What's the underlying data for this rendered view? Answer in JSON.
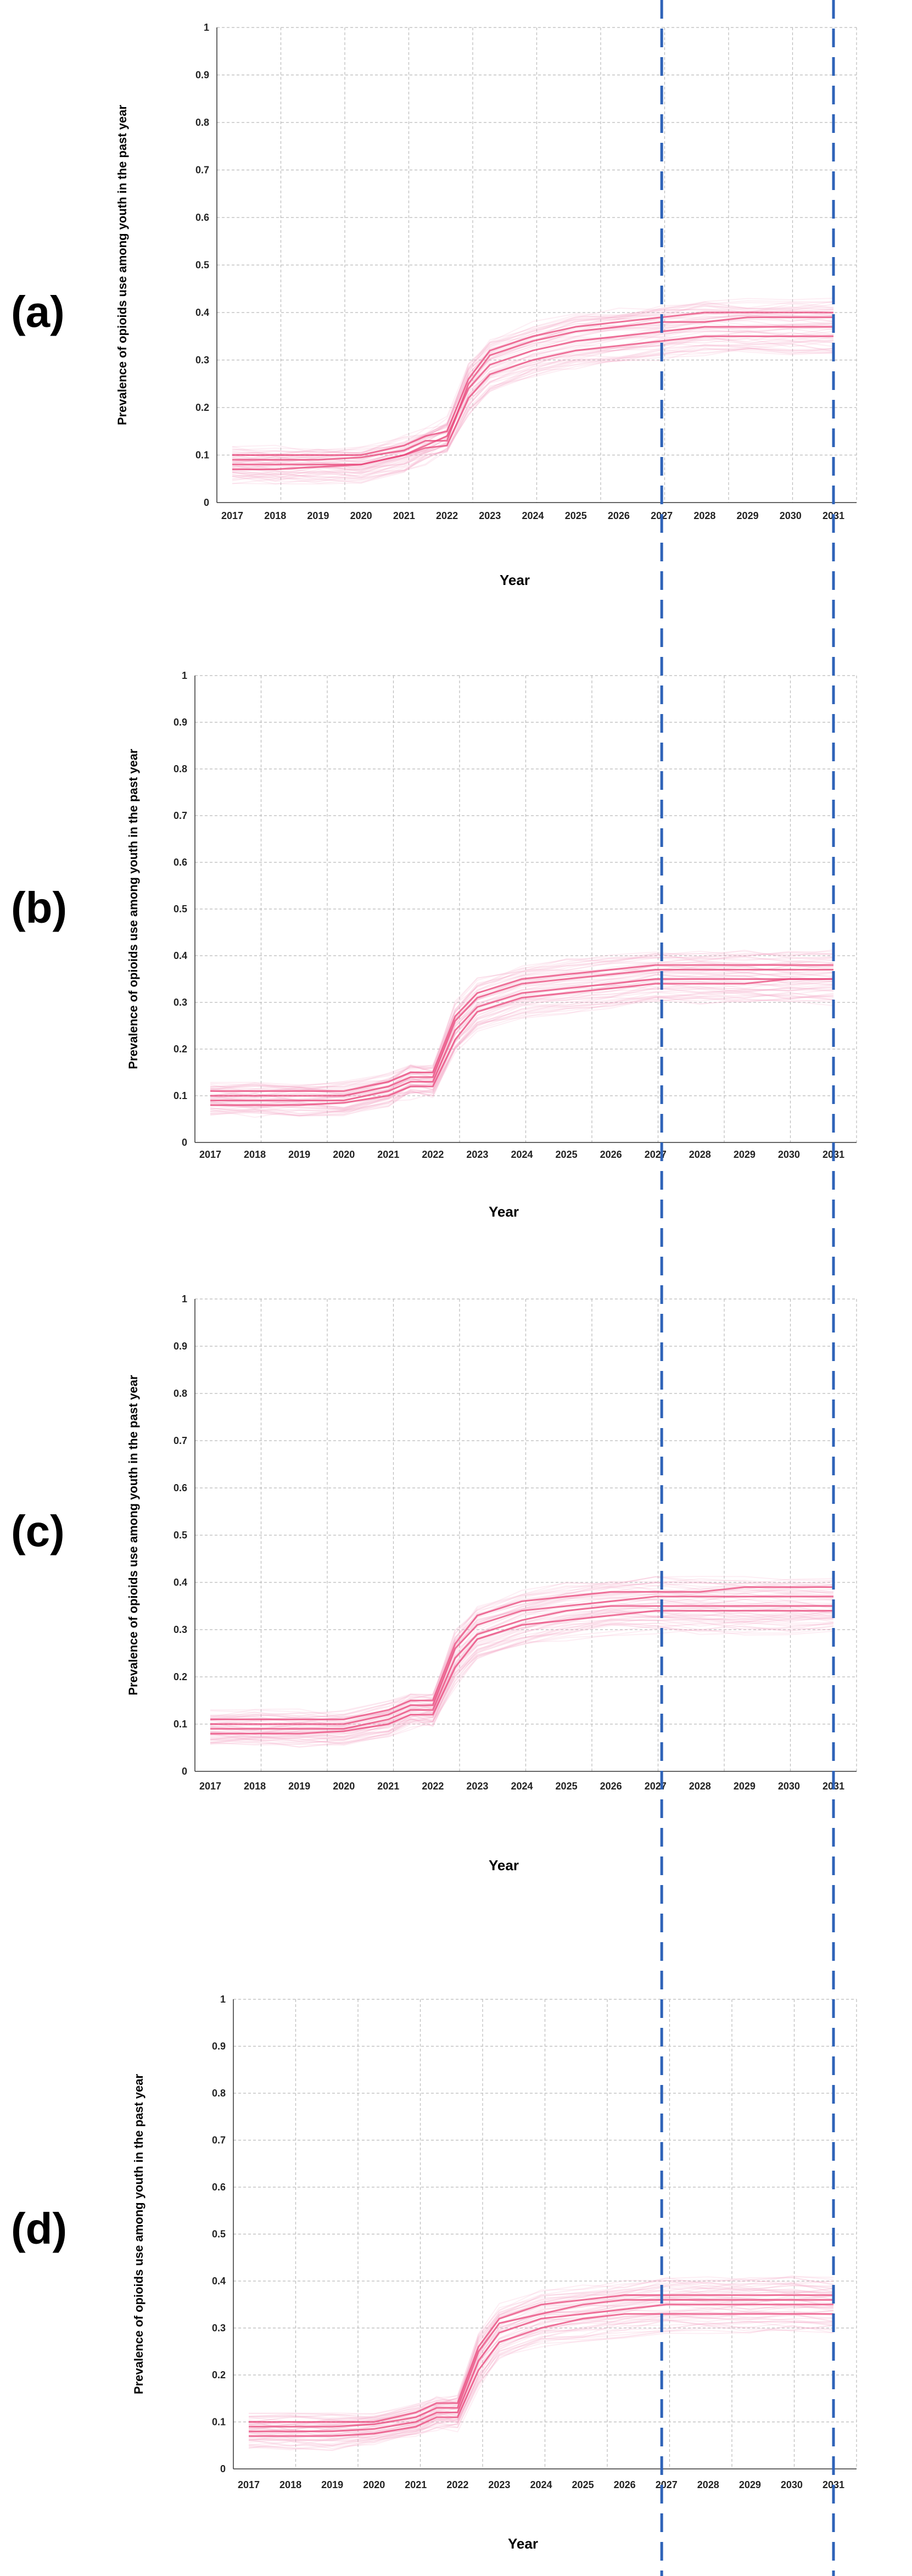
{
  "chart_data": [
    {
      "type": "line",
      "panel_label": "(a)",
      "xlabel": "Year",
      "ylabel": "Prevalence of opioids use among youth in the past year",
      "x_ticks": [
        "2017",
        "2018",
        "2019",
        "2020",
        "2021",
        "2022",
        "2023",
        "2024",
        "2025",
        "2026",
        "2027",
        "2028",
        "2029",
        "2030",
        "2031"
      ],
      "y_ticks": [
        "0",
        "0.1",
        "0.2",
        "0.3",
        "0.4",
        "0.5",
        "0.6",
        "0.7",
        "0.8",
        "0.9",
        "1"
      ],
      "ylim": [
        0,
        1
      ],
      "grid": true,
      "highlight_years": [
        2027,
        2031
      ],
      "x": [
        2017,
        2018,
        2019,
        2020,
        2021,
        2021.5,
        2022,
        2022.5,
        2023,
        2024,
        2025,
        2026,
        2027,
        2028,
        2029,
        2030,
        2031
      ],
      "series": [
        {
          "values": [
            0.08,
            0.08,
            0.08,
            0.08,
            0.1,
            0.12,
            0.14,
            0.24,
            0.29,
            0.32,
            0.34,
            0.35,
            0.36,
            0.37,
            0.37,
            0.37,
            0.37
          ]
        },
        {
          "values": [
            0.07,
            0.07,
            0.075,
            0.08,
            0.1,
            0.115,
            0.12,
            0.22,
            0.27,
            0.3,
            0.32,
            0.33,
            0.34,
            0.35,
            0.35,
            0.35,
            0.35
          ]
        },
        {
          "values": [
            0.09,
            0.09,
            0.09,
            0.095,
            0.11,
            0.13,
            0.13,
            0.25,
            0.31,
            0.34,
            0.36,
            0.37,
            0.38,
            0.38,
            0.39,
            0.39,
            0.39
          ]
        },
        {
          "values": [
            0.1,
            0.1,
            0.1,
            0.1,
            0.12,
            0.14,
            0.15,
            0.26,
            0.32,
            0.35,
            0.37,
            0.38,
            0.39,
            0.4,
            0.4,
            0.4,
            0.4
          ]
        }
      ]
    },
    {
      "type": "line",
      "panel_label": "(b)",
      "xlabel": "Year",
      "ylabel": "Prevalence of opioids use among youth in the past year",
      "x_ticks": [
        "2017",
        "2018",
        "2019",
        "2020",
        "2021",
        "2022",
        "2023",
        "2024",
        "2025",
        "2026",
        "2027",
        "2028",
        "2029",
        "2030",
        "2031"
      ],
      "y_ticks": [
        "0",
        "0.1",
        "0.2",
        "0.3",
        "0.4",
        "0.5",
        "0.6",
        "0.7",
        "0.8",
        "0.9",
        "1"
      ],
      "ylim": [
        0,
        1
      ],
      "grid": true,
      "highlight_years": [
        2027,
        2031
      ],
      "x": [
        2017,
        2018,
        2019,
        2020,
        2021,
        2021.5,
        2022,
        2022.5,
        2023,
        2024,
        2025,
        2026,
        2027,
        2028,
        2029,
        2030,
        2031
      ],
      "series": [
        {
          "values": [
            0.09,
            0.09,
            0.09,
            0.09,
            0.11,
            0.13,
            0.13,
            0.24,
            0.29,
            0.32,
            0.33,
            0.34,
            0.35,
            0.35,
            0.35,
            0.35,
            0.35
          ]
        },
        {
          "values": [
            0.08,
            0.08,
            0.08,
            0.085,
            0.1,
            0.12,
            0.12,
            0.22,
            0.28,
            0.31,
            0.32,
            0.33,
            0.34,
            0.34,
            0.34,
            0.35,
            0.35
          ]
        },
        {
          "values": [
            0.1,
            0.1,
            0.1,
            0.1,
            0.12,
            0.14,
            0.14,
            0.26,
            0.31,
            0.34,
            0.35,
            0.36,
            0.37,
            0.37,
            0.37,
            0.37,
            0.37
          ]
        },
        {
          "values": [
            0.11,
            0.11,
            0.11,
            0.11,
            0.13,
            0.15,
            0.15,
            0.27,
            0.32,
            0.35,
            0.36,
            0.37,
            0.38,
            0.38,
            0.38,
            0.38,
            0.38
          ]
        }
      ]
    },
    {
      "type": "line",
      "panel_label": "(c)",
      "xlabel": "Year",
      "ylabel": "Prevalence of opioids use among youth in the past year",
      "x_ticks": [
        "2017",
        "2018",
        "2019",
        "2020",
        "2021",
        "2022",
        "2023",
        "2024",
        "2025",
        "2026",
        "2027",
        "2028",
        "2029",
        "2030",
        "2031"
      ],
      "y_ticks": [
        "0",
        "0.1",
        "0.2",
        "0.3",
        "0.4",
        "0.5",
        "0.6",
        "0.7",
        "0.8",
        "0.9",
        "1"
      ],
      "ylim": [
        0,
        1
      ],
      "grid": true,
      "highlight_years": [
        2027,
        2031
      ],
      "x": [
        2017,
        2018,
        2019,
        2020,
        2021,
        2021.5,
        2022,
        2022.5,
        2023,
        2024,
        2025,
        2026,
        2027,
        2028,
        2029,
        2030,
        2031
      ],
      "series": [
        {
          "values": [
            0.09,
            0.09,
            0.09,
            0.09,
            0.11,
            0.13,
            0.13,
            0.24,
            0.29,
            0.32,
            0.34,
            0.35,
            0.35,
            0.35,
            0.35,
            0.35,
            0.35
          ]
        },
        {
          "values": [
            0.08,
            0.08,
            0.08,
            0.085,
            0.1,
            0.12,
            0.12,
            0.22,
            0.28,
            0.31,
            0.32,
            0.33,
            0.34,
            0.34,
            0.34,
            0.34,
            0.34
          ]
        },
        {
          "values": [
            0.1,
            0.1,
            0.1,
            0.1,
            0.12,
            0.14,
            0.14,
            0.26,
            0.31,
            0.34,
            0.35,
            0.36,
            0.37,
            0.37,
            0.37,
            0.37,
            0.37
          ]
        },
        {
          "values": [
            0.11,
            0.11,
            0.11,
            0.11,
            0.13,
            0.15,
            0.15,
            0.27,
            0.33,
            0.36,
            0.37,
            0.38,
            0.38,
            0.38,
            0.39,
            0.39,
            0.39
          ]
        }
      ]
    },
    {
      "type": "line",
      "panel_label": "(d)",
      "xlabel": "Year",
      "ylabel": "Prevalence of opioids use among youth in the past year",
      "x_ticks": [
        "2017",
        "2018",
        "2019",
        "2020",
        "2021",
        "2022",
        "2023",
        "2024",
        "2025",
        "2026",
        "2027",
        "2028",
        "2029",
        "2030",
        "2031"
      ],
      "y_ticks": [
        "0",
        "0.1",
        "0.2",
        "0.3",
        "0.4",
        "0.5",
        "0.6",
        "0.7",
        "0.8",
        "0.9",
        "1"
      ],
      "ylim": [
        0,
        1
      ],
      "grid": true,
      "highlight_years": [
        2027,
        2031
      ],
      "x": [
        2017,
        2018,
        2019,
        2020,
        2021,
        2021.5,
        2022,
        2022.5,
        2023,
        2024,
        2025,
        2026,
        2027,
        2028,
        2029,
        2030,
        2031
      ],
      "series": [
        {
          "values": [
            0.08,
            0.08,
            0.08,
            0.085,
            0.1,
            0.12,
            0.12,
            0.23,
            0.29,
            0.32,
            0.33,
            0.34,
            0.35,
            0.35,
            0.35,
            0.35,
            0.35
          ]
        },
        {
          "values": [
            0.07,
            0.07,
            0.07,
            0.075,
            0.09,
            0.11,
            0.11,
            0.21,
            0.27,
            0.3,
            0.32,
            0.33,
            0.33,
            0.33,
            0.33,
            0.33,
            0.33
          ]
        },
        {
          "values": [
            0.09,
            0.09,
            0.09,
            0.095,
            0.11,
            0.13,
            0.13,
            0.25,
            0.31,
            0.33,
            0.35,
            0.36,
            0.36,
            0.36,
            0.36,
            0.36,
            0.36
          ]
        },
        {
          "values": [
            0.1,
            0.1,
            0.1,
            0.1,
            0.12,
            0.14,
            0.14,
            0.26,
            0.32,
            0.35,
            0.36,
            0.37,
            0.37,
            0.37,
            0.37,
            0.37,
            0.37
          ]
        }
      ]
    }
  ],
  "colors": {
    "series": "#e8457a",
    "band": "#f5a3c0",
    "grid": "#b9b9b9",
    "highlight_line": "#2f63b8"
  }
}
